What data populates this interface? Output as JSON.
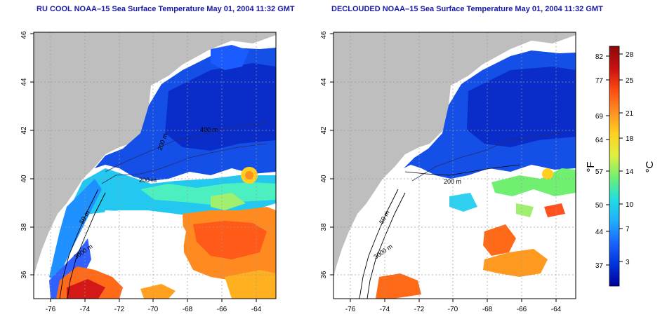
{
  "maps": [
    {
      "title": "RU COOL NOAA–15 Sea Surface Temperature May 01, 2004 11:32 GMT",
      "xticks": [
        "-76",
        "-74",
        "-72",
        "-70",
        "-68",
        "-66",
        "-64"
      ],
      "yticks": [
        "36",
        "38",
        "40",
        "42",
        "44",
        "46"
      ],
      "contour_labels": [
        "200 m",
        "200 m",
        "400 m",
        "50 m",
        "3000 m"
      ]
    },
    {
      "title": "DECLOUDED NOAA–15 Sea Surface Temperature May 01, 2004 11:32 GMT",
      "xticks": [
        "-76",
        "-74",
        "-72",
        "-70",
        "-68",
        "-66",
        "-64"
      ],
      "yticks": [
        "36",
        "38",
        "40",
        "42",
        "44",
        "46"
      ],
      "contour_labels": [
        "200 m",
        "50 m",
        "3000 m"
      ]
    }
  ],
  "colorbar": {
    "fahrenheit_ticks": [
      "82",
      "77",
      "69",
      "64",
      "57",
      "50",
      "44",
      "37"
    ],
    "celsius_ticks": [
      "28",
      "25",
      "21",
      "18",
      "14",
      "10",
      "7",
      "3"
    ],
    "fahrenheit_unit": "°F",
    "celsius_unit": "°C",
    "colors": [
      "#00009c",
      "#0033dd",
      "#1a66ff",
      "#1fb0ff",
      "#20e0e0",
      "#70f070",
      "#e0f040",
      "#ffd020",
      "#ff9020",
      "#ff4a10",
      "#c81010",
      "#8c0a0a"
    ]
  },
  "colors": {
    "land": "#bebebe",
    "title": "#1a1aa8",
    "grid": "#9a9a9a"
  }
}
